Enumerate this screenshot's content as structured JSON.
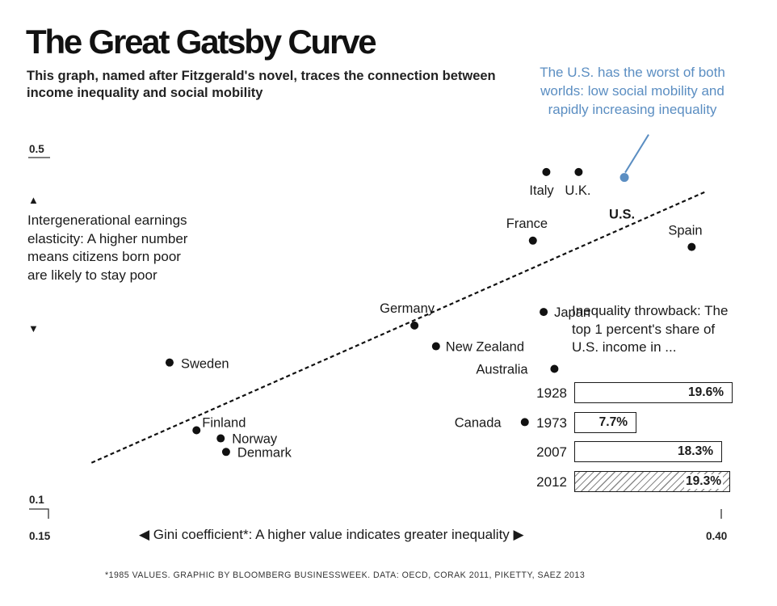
{
  "title": "The Great Gatsby Curve",
  "subtitle": "This graph, named after Fitzgerald's novel, traces the connection between income inequality and social mobility",
  "us_note": "The U.S. has the worst of both worlds: low social mobility and rapidly increasing inequality",
  "y_axis_description": "Intergenerational earnings elasticity: A higher number means citizens born poor are likely to stay poor",
  "x_axis_description": "◀ Gini coefficient*: A higher value indicates greater inequality ▶",
  "footnote": "*1985 VALUES. GRAPHIC BY BLOOMBERG BUSINESSWEEK. DATA: OECD, CORAK 2011, PIKETTY, SAEZ 2013",
  "colors": {
    "highlight": "#5b8ec2",
    "text": "#1a1a1a",
    "hatch": "#8a8a8a"
  },
  "chart_data": [
    {
      "type": "scatter",
      "title": "The Great Gatsby Curve",
      "xlabel": "Gini coefficient*: A higher value indicates greater inequality",
      "ylabel": "Intergenerational earnings elasticity",
      "x_ticks": [
        "0.15",
        "0.40"
      ],
      "y_ticks": [
        "0.1",
        "0.5"
      ],
      "xlim": [
        0.15,
        0.4
      ],
      "ylim": [
        0.1,
        0.5
      ],
      "grid": false,
      "trendline": {
        "style": "dashed",
        "x": [
          0.166,
          0.394
        ],
        "y": [
          0.162,
          0.462
        ]
      },
      "points": [
        {
          "label": "Italy",
          "x": 0.335,
          "y": 0.484
        },
        {
          "label": "U.K.",
          "x": 0.347,
          "y": 0.484
        },
        {
          "label": "U.S.",
          "x": 0.364,
          "y": 0.478,
          "highlight": true
        },
        {
          "label": "France",
          "x": 0.33,
          "y": 0.408
        },
        {
          "label": "Spain",
          "x": 0.389,
          "y": 0.401
        },
        {
          "label": "Japan",
          "x": 0.334,
          "y": 0.329
        },
        {
          "label": "Germany",
          "x": 0.286,
          "y": 0.314
        },
        {
          "label": "New Zealand",
          "x": 0.294,
          "y": 0.291
        },
        {
          "label": "Sweden",
          "x": 0.195,
          "y": 0.273
        },
        {
          "label": "Australia",
          "x": 0.338,
          "y": 0.266
        },
        {
          "label": "Canada",
          "x": 0.327,
          "y": 0.207
        },
        {
          "label": "Finland",
          "x": 0.205,
          "y": 0.198
        },
        {
          "label": "Norway",
          "x": 0.214,
          "y": 0.189
        },
        {
          "label": "Denmark",
          "x": 0.216,
          "y": 0.174
        }
      ]
    },
    {
      "type": "bar",
      "title": "Inequality throwback: The top 1 percent's share of U.S. income in ...",
      "categories": [
        "1928",
        "1973",
        "2007",
        "2012"
      ],
      "values": [
        19.6,
        7.7,
        18.3,
        19.3
      ],
      "value_labels": [
        "19.6%",
        "7.7%",
        "18.3%",
        "19.3%"
      ],
      "hatched": [
        false,
        false,
        false,
        true
      ],
      "xlim": [
        0,
        20
      ]
    }
  ]
}
